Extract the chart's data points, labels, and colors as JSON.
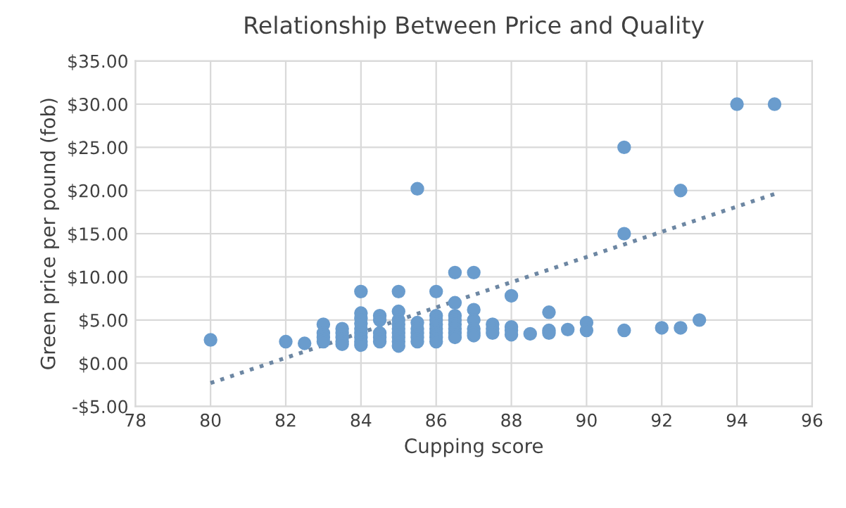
{
  "chart_data": {
    "type": "scatter",
    "title": "Relationship Between Price and Quality",
    "xlabel": "Cupping score",
    "ylabel": "Green price per pound (fob)",
    "series": [
      {
        "color": "#6a9ccd",
        "marker": "circle",
        "x": [
          80,
          82,
          82.5,
          83,
          83,
          83,
          83,
          83.5,
          83.5,
          83.5,
          83.5,
          83.5,
          84,
          84,
          84,
          84,
          84,
          84,
          84,
          84,
          84,
          84.5,
          84.5,
          84.5,
          84.5,
          84.5,
          85,
          85,
          85,
          85,
          85,
          85,
          85,
          85,
          85,
          85.5,
          85.5,
          85.5,
          85.5,
          85.5,
          85.5,
          86,
          86,
          86,
          86,
          86,
          86,
          86,
          86,
          86.5,
          86.5,
          86.5,
          86.5,
          86.5,
          86.5,
          86.5,
          86.5,
          87,
          87,
          87,
          87,
          87,
          87,
          87.5,
          87.5,
          87.5,
          88,
          88,
          88,
          88,
          88.5,
          89,
          89,
          89,
          89.5,
          90,
          90,
          91,
          91,
          91,
          92,
          92.5,
          92.5,
          93,
          94,
          95
        ],
        "values": [
          2.7,
          2.5,
          2.3,
          4.5,
          3.5,
          3,
          2.5,
          4,
          3.5,
          3,
          2.5,
          2.2,
          8.3,
          5.8,
          5.2,
          4.6,
          4,
          3.5,
          3,
          2.5,
          2.1,
          5.5,
          5,
          3.5,
          3,
          2.5,
          8.3,
          6,
          5,
          4.5,
          4,
          3.5,
          3,
          2.5,
          2,
          20.2,
          4.7,
          4,
          3.5,
          3,
          2.5,
          8.3,
          5.5,
          5,
          4.5,
          4,
          3.5,
          3,
          2.5,
          10.5,
          7,
          5.5,
          5,
          4.5,
          4,
          3.5,
          3,
          10.5,
          6.2,
          5,
          4,
          3.5,
          3.2,
          4.5,
          4,
          3.5,
          7.8,
          4.2,
          3.8,
          3.3,
          3.4,
          5.9,
          3.8,
          3.5,
          3.9,
          4.7,
          3.8,
          25,
          15,
          3.8,
          4.1,
          20,
          4.1,
          5,
          30,
          30
        ]
      },
      {
        "type": "line",
        "color": "#6d87a3",
        "line_style": "dotted",
        "x": [
          80,
          95
        ],
        "values": [
          -2.3,
          19.6
        ]
      }
    ],
    "xlim": [
      78,
      96
    ],
    "xticks": [
      78,
      80,
      82,
      84,
      86,
      88,
      90,
      92,
      94,
      96
    ],
    "ylim": [
      -5,
      35
    ],
    "yticks": [
      {
        "value": -5,
        "label": "-$5.00"
      },
      {
        "value": 0,
        "label": "$0.00"
      },
      {
        "value": 5,
        "label": "$5.00"
      },
      {
        "value": 10,
        "label": "$10.00"
      },
      {
        "value": 15,
        "label": "$15.00"
      },
      {
        "value": 20,
        "label": "$20.00"
      },
      {
        "value": 25,
        "label": "$25.00"
      },
      {
        "value": 30,
        "label": "$30.00"
      },
      {
        "value": 35,
        "label": "$35.00"
      }
    ],
    "grid": true,
    "legend": false
  }
}
